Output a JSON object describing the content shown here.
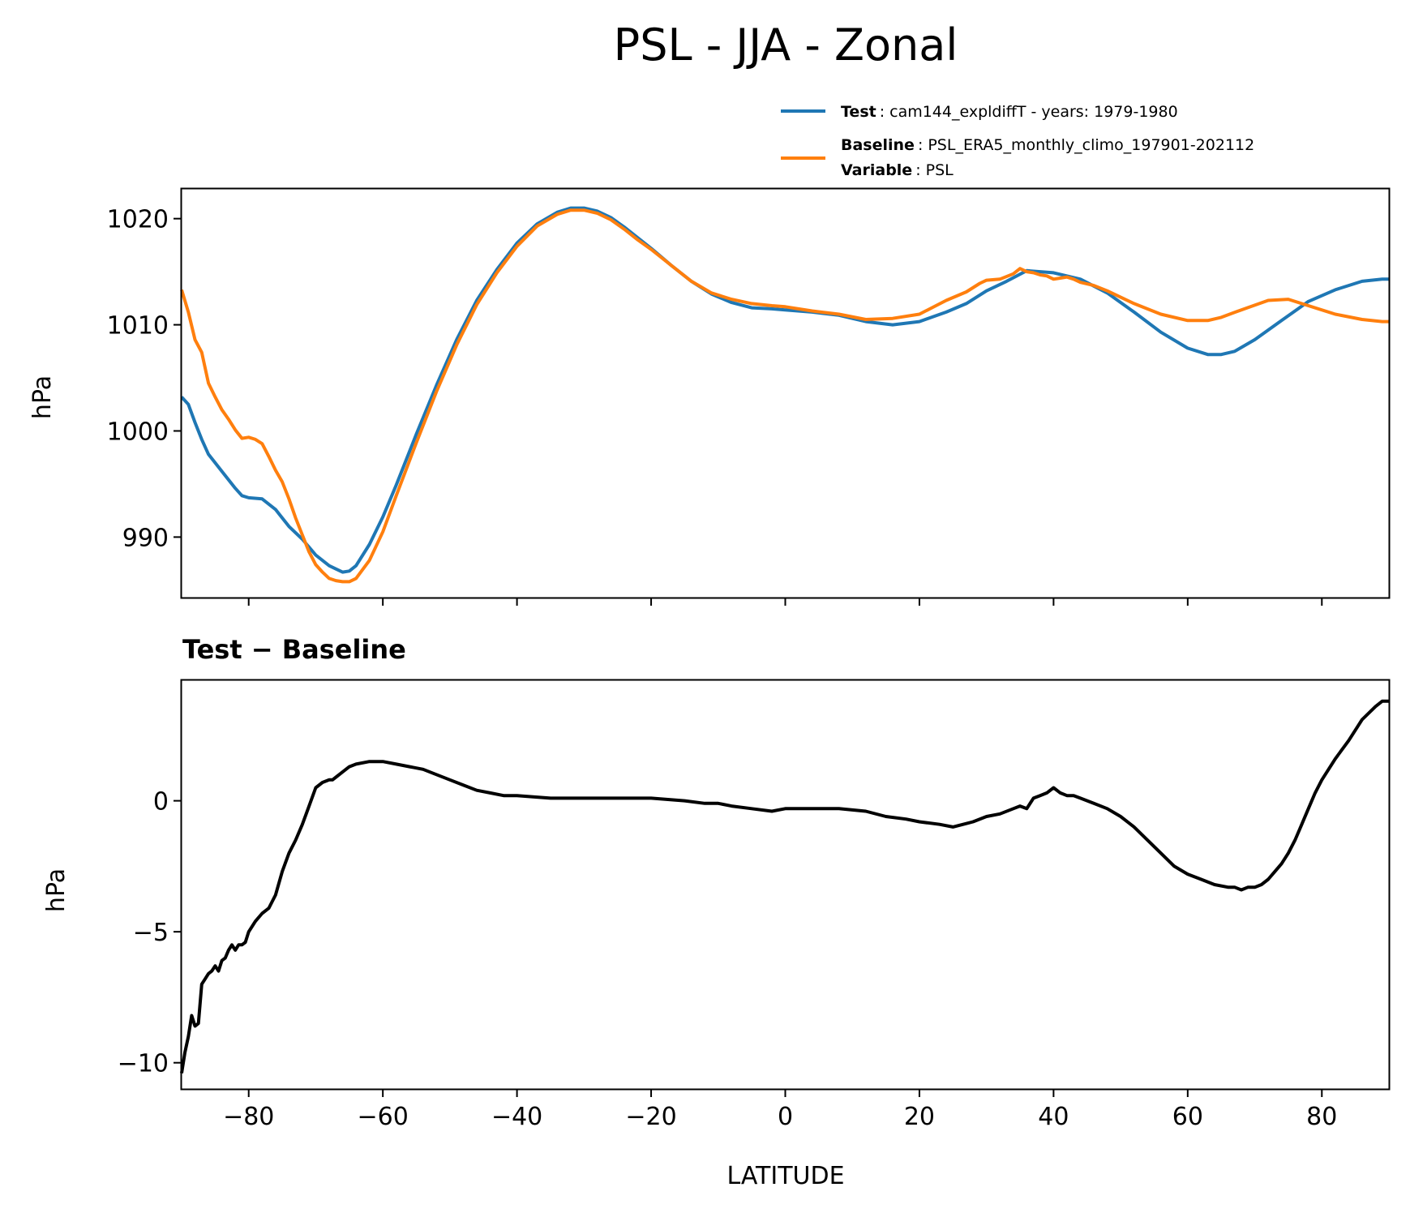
{
  "title": "PSL - JJA - Zonal",
  "legend": {
    "test": {
      "label": "Test",
      "text": "cam144_expldiffT - years: 1979-1980"
    },
    "baseline": {
      "label": "Baseline",
      "text": "PSL_ERA5_monthly_climo_197901-202112"
    },
    "variable": {
      "label": "Variable",
      "text": "PSL"
    }
  },
  "colors": {
    "test": "#1f77b4",
    "baseline": "#ff7f0e",
    "diff": "#000000"
  },
  "chart_data": [
    {
      "type": "line",
      "title": "",
      "xlabel": "",
      "ylabel": "hPa",
      "xlim": [
        -90,
        90
      ],
      "ylim": [
        984.3,
        1022.8
      ],
      "yticks": [
        990,
        1000,
        1010,
        1020
      ],
      "xticks": [
        -80,
        -60,
        -40,
        -20,
        0,
        20,
        40,
        60,
        80
      ],
      "series": [
        {
          "name": "Test",
          "x": [
            -90,
            -89,
            -88,
            -87,
            -86,
            -84,
            -82,
            -81,
            -80,
            -78,
            -76,
            -74,
            -72,
            -70,
            -68,
            -67,
            -66,
            -65,
            -64,
            -62,
            -60,
            -58,
            -55,
            -52,
            -49,
            -46,
            -43,
            -40,
            -37,
            -34,
            -32,
            -30,
            -28,
            -26,
            -24,
            -22,
            -20,
            -17,
            -14,
            -11,
            -8,
            -5,
            -2,
            0,
            4,
            8,
            12,
            16,
            20,
            24,
            27,
            30,
            33,
            36,
            40,
            44,
            48,
            52,
            56,
            60,
            63,
            65,
            67,
            70,
            74,
            78,
            82,
            86,
            89,
            90
          ],
          "values": [
            1003.2,
            1002.5,
            1000.8,
            999.2,
            997.8,
            996.2,
            994.6,
            993.9,
            993.7,
            993.6,
            992.6,
            991.0,
            989.8,
            988.3,
            987.3,
            987.0,
            986.7,
            986.8,
            987.3,
            989.3,
            991.9,
            994.9,
            999.7,
            1004.3,
            1008.6,
            1012.3,
            1015.2,
            1017.7,
            1019.5,
            1020.6,
            1021.0,
            1021.0,
            1020.7,
            1020.1,
            1019.2,
            1018.2,
            1017.2,
            1015.6,
            1014.1,
            1012.9,
            1012.1,
            1011.6,
            1011.5,
            1011.4,
            1011.2,
            1010.9,
            1010.3,
            1010.0,
            1010.3,
            1011.2,
            1012.0,
            1013.2,
            1014.1,
            1015.1,
            1014.9,
            1014.3,
            1013.0,
            1011.2,
            1009.3,
            1007.8,
            1007.2,
            1007.2,
            1007.5,
            1008.6,
            1010.4,
            1012.2,
            1013.3,
            1014.1,
            1014.3,
            1014.3
          ]
        },
        {
          "name": "Baseline",
          "x": [
            -90,
            -89,
            -88,
            -87,
            -86,
            -85,
            -84,
            -83,
            -82,
            -81,
            -80,
            -79,
            -78,
            -77,
            -76,
            -75,
            -74,
            -73,
            -72,
            -71,
            -70,
            -69,
            -68,
            -67,
            -66,
            -65,
            -64,
            -62,
            -60,
            -58,
            -55,
            -52,
            -49,
            -46,
            -43,
            -40,
            -37,
            -34,
            -32,
            -30,
            -28,
            -26,
            -24,
            -22,
            -20,
            -17,
            -14,
            -11,
            -8,
            -5,
            -2,
            0,
            4,
            8,
            12,
            16,
            20,
            24,
            27,
            29,
            30,
            32,
            34,
            35,
            36,
            37,
            38,
            39,
            40,
            41,
            42,
            43,
            44,
            46,
            48,
            52,
            56,
            60,
            63,
            65,
            68,
            72,
            75,
            78,
            82,
            86,
            89,
            90
          ],
          "values": [
            1013.3,
            1011.2,
            1008.6,
            1007.4,
            1004.5,
            1003.2,
            1002.0,
            1001.1,
            1000.1,
            999.3,
            999.4,
            999.2,
            998.8,
            997.6,
            996.3,
            995.2,
            993.6,
            991.8,
            990.2,
            988.6,
            987.4,
            986.7,
            986.1,
            985.9,
            985.8,
            985.8,
            986.1,
            987.8,
            990.5,
            993.9,
            998.9,
            1003.7,
            1008.1,
            1011.9,
            1014.9,
            1017.4,
            1019.3,
            1020.4,
            1020.8,
            1020.8,
            1020.5,
            1019.9,
            1019.0,
            1018.0,
            1017.1,
            1015.6,
            1014.1,
            1013.0,
            1012.4,
            1012.0,
            1011.8,
            1011.7,
            1011.3,
            1011.0,
            1010.5,
            1010.6,
            1011.0,
            1012.3,
            1013.1,
            1013.9,
            1014.2,
            1014.3,
            1014.8,
            1015.3,
            1015.0,
            1014.9,
            1014.7,
            1014.6,
            1014.3,
            1014.4,
            1014.5,
            1014.3,
            1014.0,
            1013.7,
            1013.2,
            1012.0,
            1011.0,
            1010.4,
            1010.4,
            1010.7,
            1011.4,
            1012.3,
            1012.4,
            1011.8,
            1011.0,
            1010.5,
            1010.3,
            1010.3
          ]
        }
      ]
    },
    {
      "type": "line",
      "title": "Test − Baseline",
      "xlabel": "LATITUDE",
      "ylabel": "hPa",
      "xlim": [
        -90,
        90
      ],
      "ylim": [
        -11.0,
        4.6
      ],
      "yticks": [
        -10,
        -5,
        0
      ],
      "xticks": [
        -80,
        -60,
        -40,
        -20,
        0,
        20,
        40,
        60,
        80
      ],
      "series": [
        {
          "name": "Test − Baseline",
          "x": [
            -90,
            -89.5,
            -89,
            -88.5,
            -88,
            -87.5,
            -87,
            -86.5,
            -86,
            -85.5,
            -85,
            -84.5,
            -84,
            -83.5,
            -83,
            -82.5,
            -82,
            -81.5,
            -81,
            -80.5,
            -80,
            -79,
            -78,
            -77,
            -76,
            -75,
            -74,
            -73,
            -72,
            -71,
            -70,
            -69,
            -68,
            -67.5,
            -67,
            -66,
            -65,
            -64,
            -62,
            -60,
            -58,
            -56,
            -54,
            -52,
            -50,
            -48,
            -46,
            -44,
            -42,
            -40,
            -35,
            -30,
            -25,
            -20,
            -15,
            -12,
            -10,
            -8,
            -5,
            -2,
            0,
            3,
            5,
            8,
            12,
            15,
            18,
            20,
            23,
            25,
            28,
            30,
            32,
            34,
            35,
            36,
            37,
            38,
            39,
            40,
            41,
            42,
            43,
            44,
            46,
            48,
            50,
            52,
            54,
            56,
            58,
            60,
            62,
            64,
            66,
            67,
            68,
            69,
            70,
            71,
            72,
            73,
            74,
            75,
            76,
            77,
            78,
            79,
            80,
            82,
            84,
            86,
            88,
            89,
            90
          ],
          "values": [
            -10.4,
            -9.6,
            -9.0,
            -8.2,
            -8.6,
            -8.5,
            -7.0,
            -6.8,
            -6.6,
            -6.5,
            -6.3,
            -6.5,
            -6.1,
            -6.0,
            -5.7,
            -5.5,
            -5.7,
            -5.5,
            -5.5,
            -5.4,
            -5.0,
            -4.6,
            -4.3,
            -4.1,
            -3.6,
            -2.7,
            -2.0,
            -1.5,
            -0.9,
            -0.2,
            0.5,
            0.7,
            0.8,
            0.8,
            0.9,
            1.1,
            1.3,
            1.4,
            1.5,
            1.5,
            1.4,
            1.3,
            1.2,
            1.0,
            0.8,
            0.6,
            0.4,
            0.3,
            0.2,
            0.2,
            0.1,
            0.1,
            0.1,
            0.1,
            0.0,
            -0.1,
            -0.1,
            -0.2,
            -0.3,
            -0.4,
            -0.3,
            -0.3,
            -0.3,
            -0.3,
            -0.4,
            -0.6,
            -0.7,
            -0.8,
            -0.9,
            -1.0,
            -0.8,
            -0.6,
            -0.5,
            -0.3,
            -0.2,
            -0.3,
            0.1,
            0.2,
            0.3,
            0.5,
            0.3,
            0.2,
            0.2,
            0.1,
            -0.1,
            -0.3,
            -0.6,
            -1.0,
            -1.5,
            -2.0,
            -2.5,
            -2.8,
            -3.0,
            -3.2,
            -3.3,
            -3.3,
            -3.4,
            -3.3,
            -3.3,
            -3.2,
            -3.0,
            -2.7,
            -2.4,
            -2.0,
            -1.5,
            -0.9,
            -0.3,
            0.3,
            0.8,
            1.6,
            2.3,
            3.1,
            3.6,
            3.8,
            3.8
          ]
        }
      ]
    }
  ]
}
